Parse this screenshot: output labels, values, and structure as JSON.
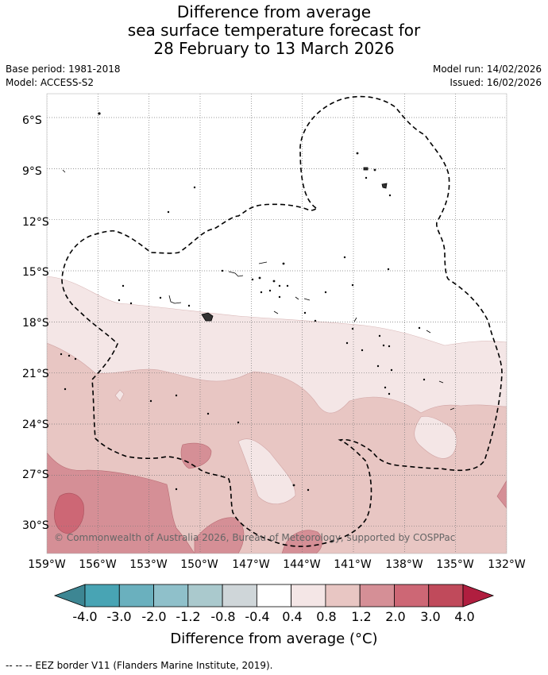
{
  "title": {
    "line1": "Difference from average",
    "line2": "sea surface temperature forecast for",
    "line3": "28 February to 13 March 2026"
  },
  "meta": {
    "base_period": "Base period: 1981-2018",
    "model": "Model: ACCESS-S2",
    "model_run": "Model run: 14/02/2026",
    "issued": "Issued: 16/02/2026"
  },
  "copyright": "© Commonwealth of Australia 2026, Bureau of Meteorology, supported by COSPPac",
  "footer": "-- -- -- EEZ border V11 (Flanders Marine Institute, 2019).",
  "colorbar": {
    "title": "Difference from average (°C)",
    "labels": [
      "-4.0",
      "-3.0",
      "-2.0",
      "-1.2",
      "-0.8",
      "-0.4",
      "0.4",
      "0.8",
      "1.2",
      "2.0",
      "3.0",
      "4.0"
    ],
    "colors": [
      "#3d8693",
      "#48a4b4",
      "#6ab0be",
      "#8fc0ca",
      "#aac9cd",
      "#cfd6d9",
      "#ffffff",
      "#f4e6e6",
      "#e8c6c3",
      "#d58f96",
      "#cd6775",
      "#c04a5b",
      "#b01e3f"
    ]
  },
  "map": {
    "lat_labels": [
      "6°S",
      "9°S",
      "12°S",
      "15°S",
      "18°S",
      "21°S",
      "24°S",
      "27°S",
      "30°S"
    ],
    "lon_labels": [
      "159°W",
      "156°W",
      "153°W",
      "150°W",
      "147°W",
      "144°W",
      "141°W",
      "138°W",
      "135°W",
      "132°W"
    ],
    "lat_values": [
      -6,
      -9,
      -12,
      -15,
      -18,
      -21,
      -24,
      -27,
      -30
    ],
    "lon_values": [
      -159,
      -156,
      -153,
      -150,
      -147,
      -144,
      -141,
      -138,
      -135,
      -132
    ],
    "extent": {
      "lon_min": -159,
      "lon_max": -132,
      "lat_max": -4.6,
      "lat_min": -31.6
    }
  }
}
